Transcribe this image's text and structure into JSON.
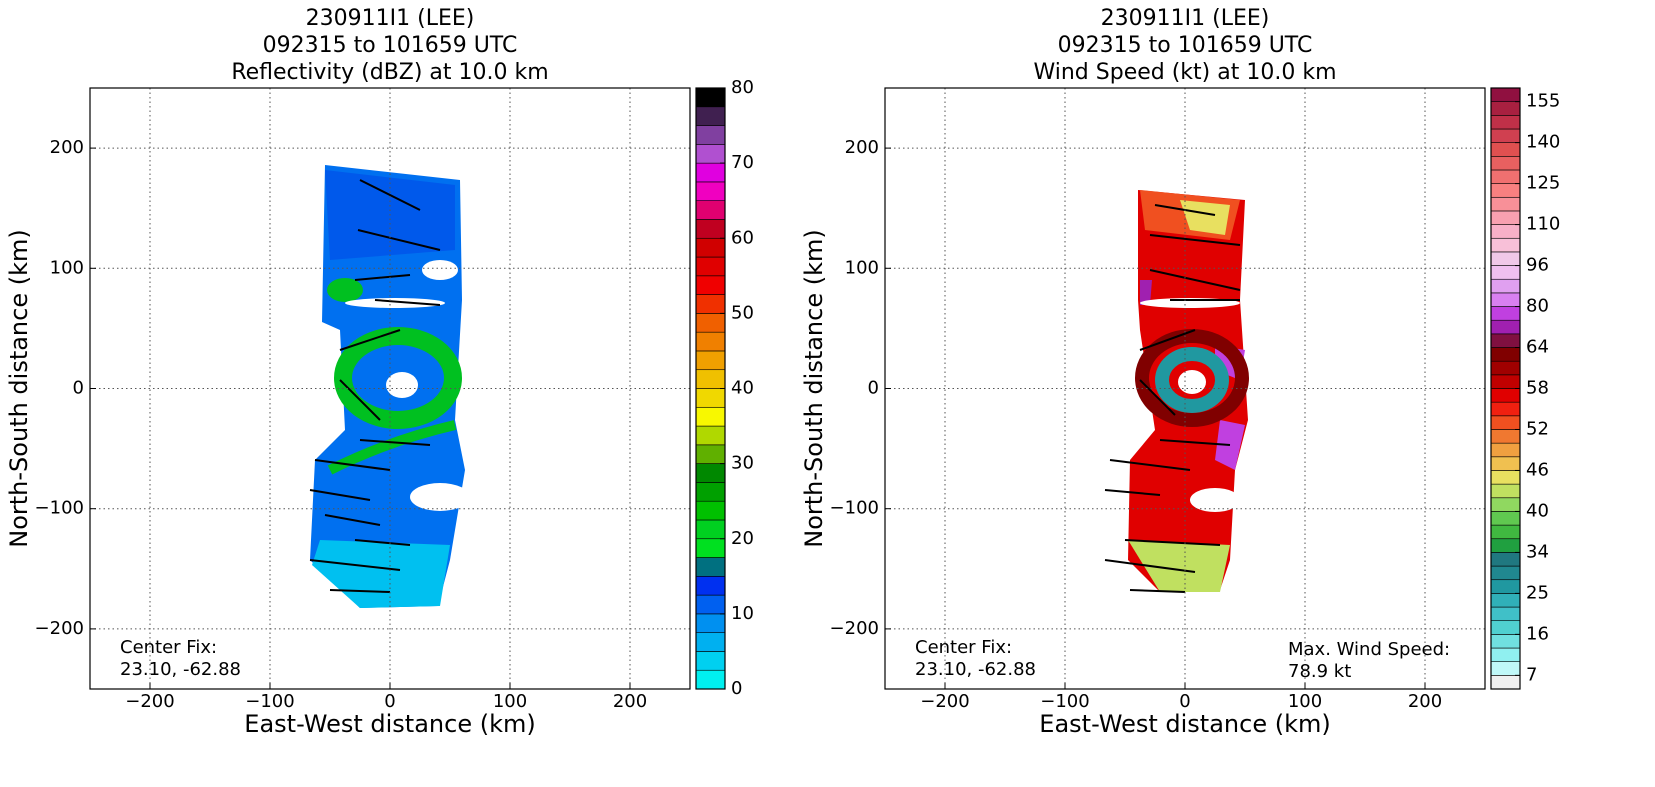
{
  "chart_data": [
    {
      "type": "heatmap",
      "title": [
        "230911I1 (LEE)",
        "092315 to 101659 UTC",
        "Reflectivity (dBZ) at 10.0 km"
      ],
      "xlabel": "East-West distance (km)",
      "ylabel": "North-South distance (km)",
      "xlim": [
        -250,
        250
      ],
      "ylim": [
        -250,
        250
      ],
      "xticks": [
        {
          "value": -200,
          "label": "−200"
        },
        {
          "value": -100,
          "label": "−100"
        },
        0,
        100,
        200
      ],
      "yticks": [
        {
          "value": -200,
          "label": "−200"
        },
        {
          "value": -100,
          "label": "−100"
        },
        0,
        100,
        200
      ],
      "grid": true,
      "annotations": [
        "Center Fix:",
        "23.10, -62.88"
      ],
      "colorbar": {
        "levels": [
          0,
          2.5,
          5,
          7.5,
          10,
          12.5,
          15,
          17.5,
          20,
          22.5,
          25,
          27.5,
          30,
          32.5,
          35,
          37.5,
          40,
          42.5,
          45,
          47.5,
          50,
          52.5,
          55,
          57.5,
          60,
          62.5,
          65,
          67.5,
          70,
          72.5,
          75,
          77.5,
          80
        ],
        "colors": [
          "#00f0f0",
          "#00d0f0",
          "#00b0f0",
          "#0090f0",
          "#0060f0",
          "#0030f0",
          "#007080",
          "#00e020",
          "#00d020",
          "#00c000",
          "#00a000",
          "#008800",
          "#60b000",
          "#b0d800",
          "#f8f800",
          "#f0d800",
          "#f0c000",
          "#f0a000",
          "#f08000",
          "#f06000",
          "#f03000",
          "#f00000",
          "#e00000",
          "#d00000",
          "#c00020",
          "#e00070",
          "#f000c0",
          "#e000e0",
          "#b050d0",
          "#8040a0",
          "#402050",
          "#000000"
        ],
        "ticks": [
          0,
          10,
          20,
          30,
          40,
          50,
          60,
          70,
          80
        ]
      }
    },
    {
      "type": "heatmap",
      "title": [
        "230911I1 (LEE)",
        "092315 to 101659 UTC",
        "Wind Speed (kt) at 10.0 km"
      ],
      "xlabel": "East-West distance (km)",
      "ylabel": "North-South distance (km)",
      "xlim": [
        -250,
        250
      ],
      "ylim": [
        -250,
        250
      ],
      "xticks": [
        {
          "value": -200,
          "label": "−200"
        },
        {
          "value": -100,
          "label": "−100"
        },
        0,
        100,
        200
      ],
      "yticks": [
        {
          "value": -200,
          "label": "−200"
        },
        {
          "value": -100,
          "label": "−100"
        },
        0,
        100,
        200
      ],
      "grid": true,
      "annotations": [
        "Center Fix:",
        "23.10, -62.88",
        "Max. Wind Speed:",
        "78.9 kt"
      ],
      "colorbar": {
        "levels": [
          4,
          7,
          10,
          13,
          16,
          19,
          22,
          25,
          28,
          31,
          34,
          36,
          38,
          40,
          42,
          44,
          46,
          48,
          50,
          52,
          54,
          56,
          58,
          60,
          62,
          64,
          69,
          75,
          80,
          85,
          91,
          96,
          101,
          105,
          110,
          115,
          120,
          125,
          130,
          135,
          140,
          145,
          150,
          155,
          160
        ],
        "colors": [
          "#f0f0f0",
          "#c0f8f8",
          "#90f0f0",
          "#70e0e0",
          "#50d0d0",
          "#40c0c8",
          "#30b0b8",
          "#2098a0",
          "#208890",
          "#207880",
          "#20a040",
          "#40b840",
          "#60c850",
          "#90d860",
          "#c0e060",
          "#e8e060",
          "#f0c050",
          "#f0a040",
          "#f07830",
          "#f05020",
          "#f02010",
          "#e00000",
          "#c00000",
          "#a00000",
          "#800000",
          "#801040",
          "#a020b0",
          "#c040e0",
          "#d880f0",
          "#e0a0f0",
          "#f0c0f0",
          "#f0c8e8",
          "#f8c0d8",
          "#f8b0c8",
          "#f8a0b0",
          "#f89098",
          "#f88080",
          "#f07070",
          "#e86060",
          "#e05050",
          "#d04050",
          "#c03048",
          "#a82040",
          "#901040"
        ],
        "ticks": [
          7,
          16,
          25,
          34,
          40,
          46,
          52,
          58,
          64,
          80,
          96,
          110,
          125,
          140,
          155
        ]
      }
    }
  ]
}
